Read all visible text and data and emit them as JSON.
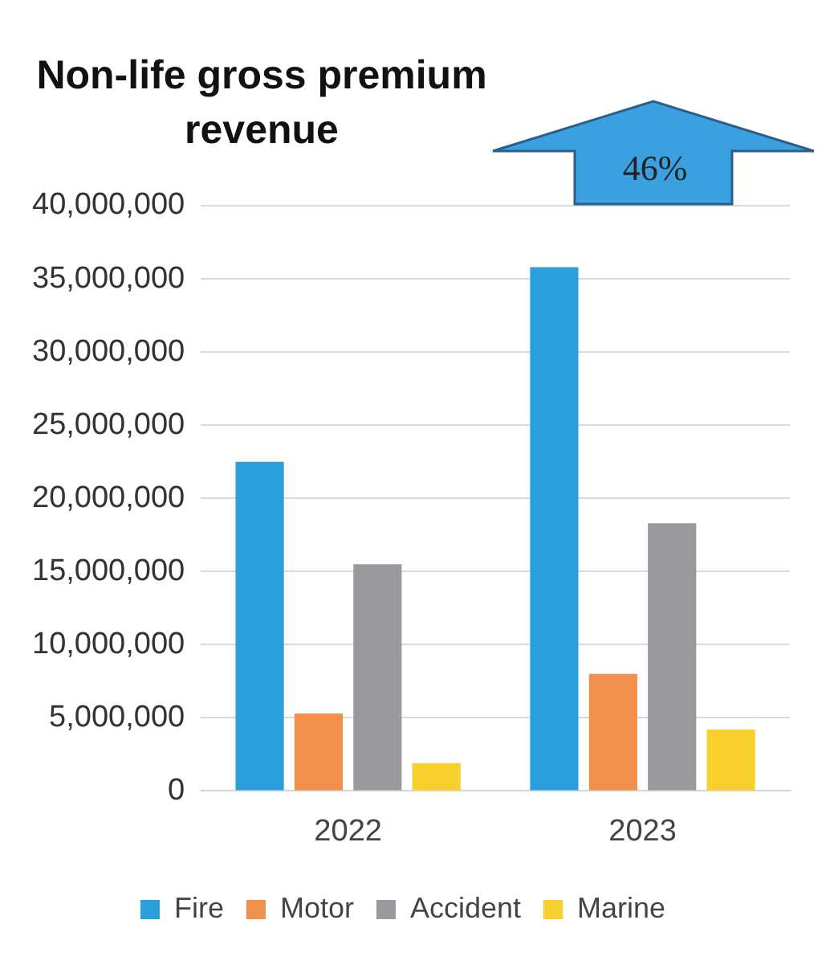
{
  "chart_data": {
    "type": "bar",
    "title": "Non-life gross premium revenue",
    "categories": [
      "2022",
      "2023"
    ],
    "series": [
      {
        "name": "Fire",
        "color": "#2a9fdc",
        "values": [
          22500000,
          35800000
        ]
      },
      {
        "name": "Motor",
        "color": "#f0904c",
        "values": [
          5300000,
          8000000
        ]
      },
      {
        "name": "Accident",
        "color": "#9a9a9e",
        "values": [
          15500000,
          18300000
        ]
      },
      {
        "name": "Marine",
        "color": "#f7d02e",
        "values": [
          1900000,
          4200000
        ]
      }
    ],
    "ylim": [
      0,
      40000000
    ],
    "yticks": [
      {
        "value": 0,
        "label": "0"
      },
      {
        "value": 5000000,
        "label": "5,000,000"
      },
      {
        "value": 10000000,
        "label": "10,000,000"
      },
      {
        "value": 15000000,
        "label": "15,000,000"
      },
      {
        "value": 20000000,
        "label": "20,000,000"
      },
      {
        "value": 25000000,
        "label": "25,000,000"
      },
      {
        "value": 30000000,
        "label": "30,000,000"
      },
      {
        "value": 35000000,
        "label": "35,000,000"
      },
      {
        "value": 40000000,
        "label": "40,000,000"
      }
    ],
    "grid": "y",
    "legend": "bottom",
    "annotations": [
      "46%"
    ]
  }
}
